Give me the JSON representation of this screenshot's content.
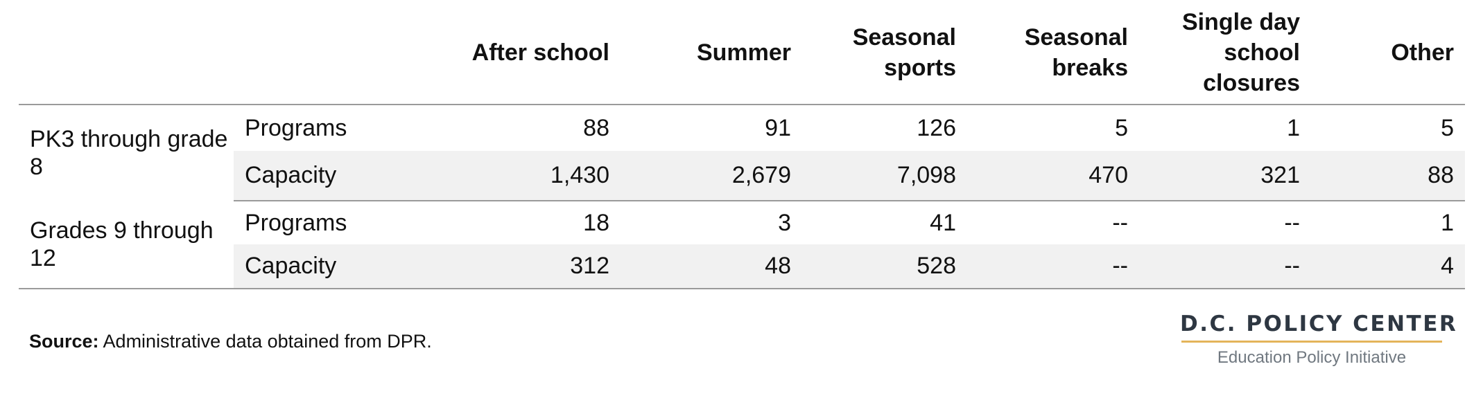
{
  "table": {
    "columns": [
      "After school",
      "Summer",
      "Seasonal sports",
      "Seasonal breaks",
      "Single day school closures",
      "Other"
    ],
    "groups": [
      {
        "label": "PK3 through grade 8",
        "rows": [
          {
            "metric": "Programs",
            "values": [
              "88",
              "91",
              "126",
              "5",
              "1",
              "5"
            ]
          },
          {
            "metric": "Capacity",
            "values": [
              "1,430",
              "2,679",
              "7,098",
              "470",
              "321",
              "88"
            ]
          }
        ]
      },
      {
        "label": "Grades 9 through 12",
        "rows": [
          {
            "metric": "Programs",
            "values": [
              "18",
              "3",
              "41",
              "--",
              "--",
              "1"
            ]
          },
          {
            "metric": "Capacity",
            "values": [
              "312",
              "48",
              "528",
              "--",
              "--",
              "4"
            ]
          }
        ]
      }
    ]
  },
  "footer": {
    "source_label": "Source:",
    "source_text": " Administrative data obtained from DPR."
  },
  "logo": {
    "name": "D.C. POLICY CENTER",
    "subtitle": "Education Policy Initiative"
  }
}
